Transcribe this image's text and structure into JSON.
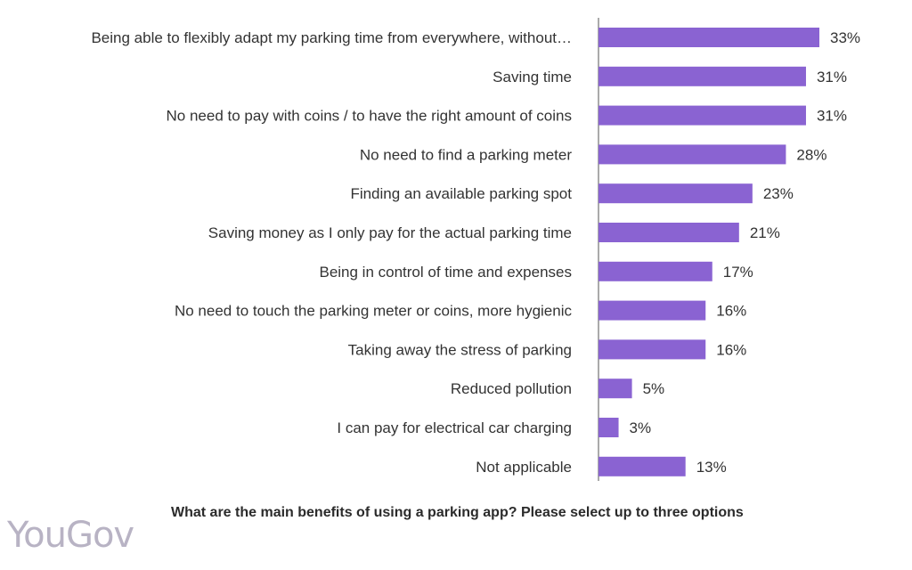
{
  "chart_data": {
    "type": "bar",
    "orientation": "horizontal",
    "categories": [
      "Being able to flexibly adapt my parking time from everywhere, without…",
      "Saving time",
      "No need to pay with coins / to have the right amount of coins",
      "No need to find a parking meter",
      "Finding an available parking spot",
      "Saving money as I only pay for the actual parking time",
      "Being in control of time and expenses",
      "No need to touch the parking meter or coins, more hygienic",
      "Taking away the stress of parking",
      "Reduced pollution",
      "I can pay for electrical car charging",
      "Not applicable"
    ],
    "values": [
      33,
      31,
      31,
      28,
      23,
      21,
      17,
      16,
      16,
      5,
      3,
      13
    ],
    "value_labels": [
      "33%",
      "31%",
      "31%",
      "28%",
      "23%",
      "21%",
      "17%",
      "16%",
      "16%",
      "5%",
      "3%",
      "13%"
    ],
    "unit": "%",
    "xlim": [
      0,
      35
    ],
    "grid": false,
    "bar_color": "#8a63d2"
  },
  "question": "What are the main benefits of using a parking app? Please select up to three options",
  "brand": "YouGov"
}
